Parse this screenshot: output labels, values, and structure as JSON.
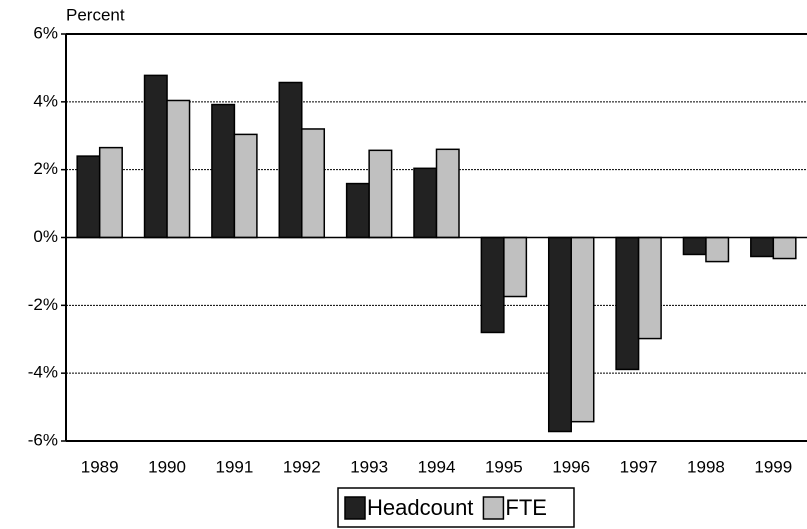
{
  "chart_data": {
    "type": "bar",
    "y_axis_label": "Percent",
    "categories": [
      "1989",
      "1990",
      "1991",
      "1992",
      "1993",
      "1994",
      "1995",
      "1996",
      "1997",
      "1998",
      "1999"
    ],
    "series": [
      {
        "name": "Headcount",
        "color": "#222222",
        "values": [
          2.4,
          4.78,
          3.92,
          4.57,
          1.59,
          2.04,
          -2.8,
          -5.72,
          -3.89,
          -0.5,
          -0.56
        ]
      },
      {
        "name": "FTE",
        "color": "#c0c0c0",
        "values": [
          2.65,
          4.04,
          3.04,
          3.2,
          2.57,
          2.6,
          -1.74,
          -5.43,
          -2.98,
          -0.71,
          -0.62
        ]
      }
    ],
    "ylim": [
      -6,
      6
    ],
    "yticks": [
      {
        "value": -6,
        "label": "-6%"
      },
      {
        "value": -4,
        "label": "-4%"
      },
      {
        "value": -2,
        "label": "-2%"
      },
      {
        "value": 0,
        "label": "0%"
      },
      {
        "value": 2,
        "label": "2%"
      },
      {
        "value": 4,
        "label": "4%"
      },
      {
        "value": 6,
        "label": "6%"
      }
    ],
    "grid": true,
    "legend": "bottom"
  }
}
